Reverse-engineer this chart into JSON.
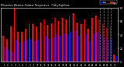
{
  "title1": "Milwaukee Weather Outdoor Temperature   Daily High/Low",
  "bg_color": "#000000",
  "plot_bg": "#000000",
  "bar_width": 0.38,
  "days": [
    1,
    2,
    3,
    4,
    5,
    6,
    7,
    8,
    9,
    10,
    11,
    12,
    13,
    14,
    15,
    16,
    17,
    18,
    19,
    20,
    21,
    22,
    23,
    24,
    25,
    26,
    27,
    28,
    29,
    30,
    31
  ],
  "highs": [
    38,
    34,
    52,
    78,
    44,
    44,
    48,
    55,
    55,
    52,
    58,
    62,
    54,
    56,
    65,
    60,
    65,
    62,
    68,
    72,
    58,
    55,
    62,
    48,
    65,
    68,
    62,
    55,
    50,
    52,
    10
  ],
  "lows": [
    22,
    18,
    14,
    32,
    28,
    30,
    32,
    34,
    30,
    32,
    36,
    38,
    34,
    36,
    40,
    38,
    42,
    40,
    44,
    46,
    38,
    36,
    40,
    30,
    42,
    44,
    40,
    36,
    32,
    34,
    8
  ],
  "high_color": "#ff0000",
  "low_color": "#0000ff",
  "ylim_min": 0,
  "ylim_max": 80,
  "ytick_vals": [
    0,
    20,
    40,
    60,
    80
  ],
  "ytick_labels": [
    "0",
    "20",
    "40",
    "60",
    "80"
  ],
  "future_from_day": 27,
  "future_days": [
    27,
    28,
    29,
    30
  ],
  "legend_labels": [
    "Low",
    "High"
  ],
  "legend_colors": [
    "#0000ff",
    "#ff0000"
  ],
  "text_color": "#ffffff",
  "tick_color": "#ffffff",
  "spine_color": "#ffffff"
}
